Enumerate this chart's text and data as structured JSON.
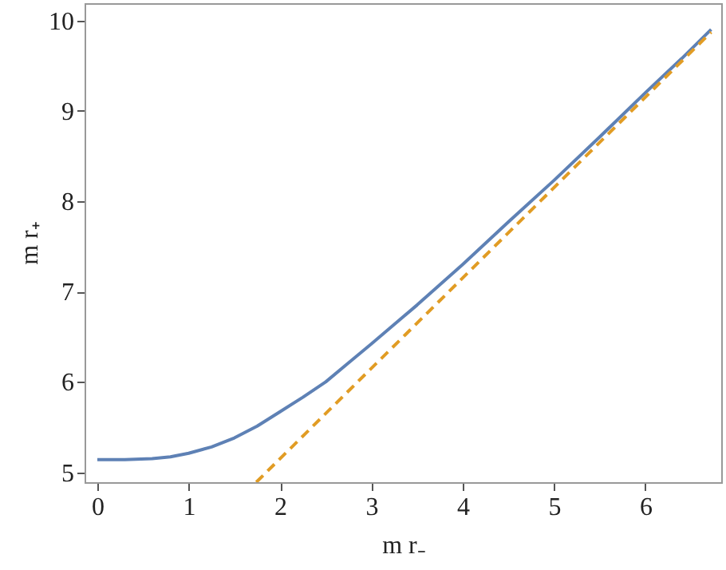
{
  "chart_data": {
    "type": "line",
    "xlabel": "m r₋",
    "ylabel": "m r₊",
    "xlim": [
      -0.14,
      6.83
    ],
    "ylim": [
      4.89,
      10.19
    ],
    "xticks": [
      0,
      1,
      2,
      3,
      4,
      5,
      6
    ],
    "yticks": [
      5,
      6,
      7,
      8,
      9,
      10
    ],
    "grid": false,
    "marker": "none",
    "series": [
      {
        "color": "#5e81b5",
        "line_style": "solid",
        "x": [
          0,
          0.3,
          0.6,
          0.8,
          1,
          1.25,
          1.5,
          1.75,
          2,
          2.25,
          2.5,
          2.75,
          3,
          3.5,
          4,
          4.5,
          5,
          5.5,
          6,
          6.4,
          6.72
        ],
        "values": [
          5.14,
          5.14,
          5.15,
          5.17,
          5.21,
          5.28,
          5.38,
          5.51,
          5.67,
          5.83,
          6.0,
          6.21,
          6.42,
          6.85,
          7.3,
          7.77,
          8.23,
          8.71,
          9.2,
          9.58,
          9.9
        ]
      },
      {
        "color": "#e19c24",
        "line_style": "dashed",
        "x": [
          1.74,
          6.72
        ],
        "values": [
          4.89,
          9.87
        ]
      }
    ]
  }
}
